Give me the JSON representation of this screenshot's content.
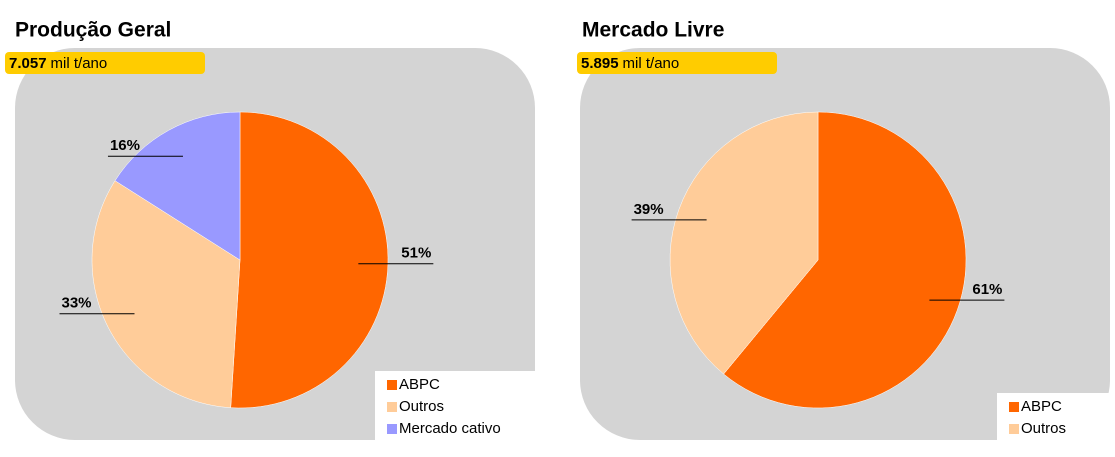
{
  "chart_data": [
    {
      "type": "pie",
      "title": "Produção Geral",
      "badge_value": "7.057",
      "badge_unit": "mil t/ano",
      "categories": [
        "ABPC",
        "Outros",
        "Mercado cativo"
      ],
      "values": [
        51,
        33,
        16
      ],
      "value_labels": [
        "51%",
        "33%",
        "16%"
      ],
      "colors": [
        "#ff6600",
        "#ffcc99",
        "#9999ff"
      ],
      "legend": "lower right"
    },
    {
      "type": "pie",
      "title": "Mercado Livre",
      "badge_value": "5.895",
      "badge_unit": "mil t/ano",
      "categories": [
        "ABPC",
        "Outros"
      ],
      "values": [
        61,
        39
      ],
      "value_labels": [
        "61%",
        "39%"
      ],
      "colors": [
        "#ff6600",
        "#ffcc99"
      ],
      "legend": "lower right"
    }
  ]
}
